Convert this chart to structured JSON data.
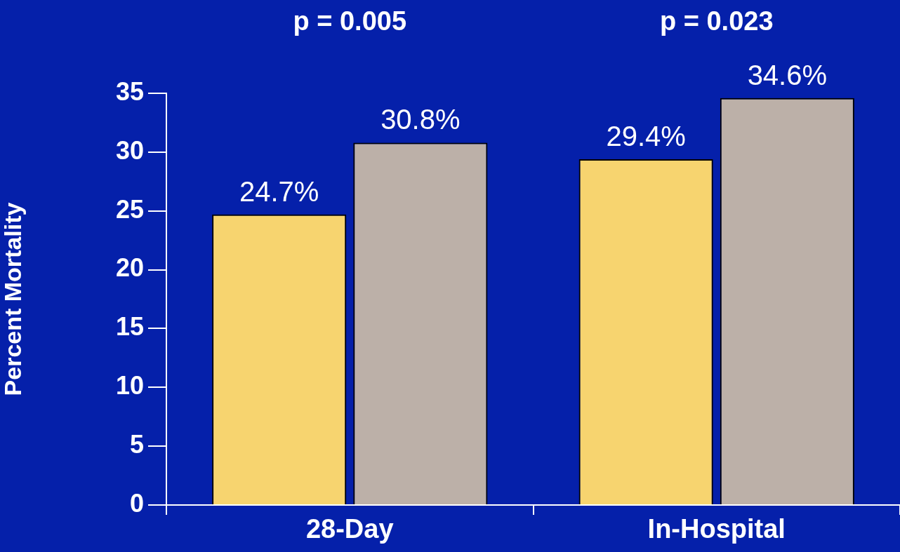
{
  "chart_data": {
    "type": "bar",
    "ylabel": "Percent Mortality",
    "categories": [
      "28-Day",
      "In-Hospital"
    ],
    "series": [
      {
        "color": "#f7d46f",
        "values": [
          24.7,
          29.4
        ],
        "value_labels": [
          "24.7%",
          "29.4%"
        ]
      },
      {
        "color": "#bcb0a8",
        "values": [
          30.8,
          34.6
        ],
        "value_labels": [
          "30.8%",
          "34.6%"
        ]
      }
    ],
    "ylim": [
      0,
      35
    ],
    "yticks": [
      0,
      5,
      10,
      15,
      20,
      25,
      30,
      35
    ],
    "grid": false,
    "legend": false,
    "annotations": [
      "p = 0.005",
      "p = 0.023"
    ]
  }
}
